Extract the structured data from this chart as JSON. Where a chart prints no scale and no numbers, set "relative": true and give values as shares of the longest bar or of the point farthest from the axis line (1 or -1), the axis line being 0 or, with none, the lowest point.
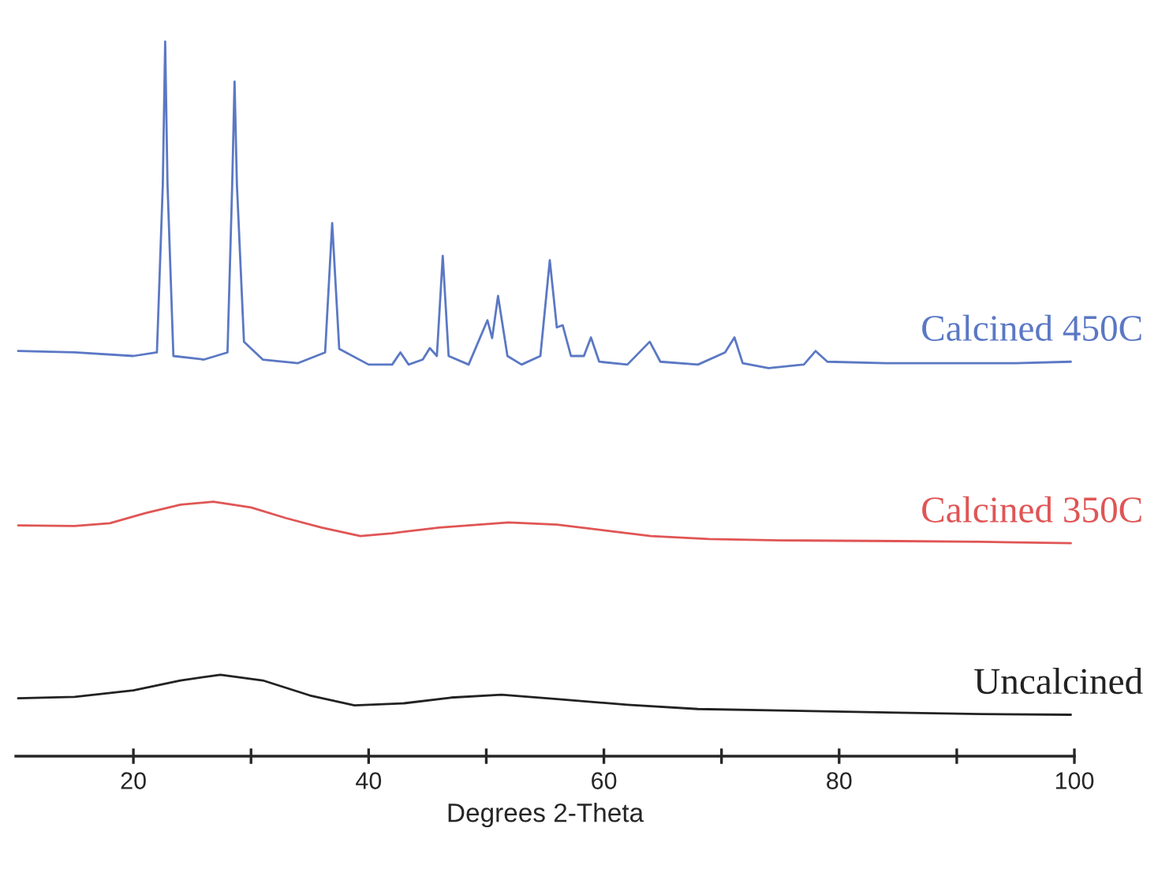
{
  "chart_data": {
    "type": "line",
    "relative": true,
    "xlabel": "Degrees 2-Theta",
    "xlim": [
      10,
      100
    ],
    "xticks": [
      20,
      {
        "value": 30,
        "label": null
      },
      40,
      {
        "value": 50,
        "label": null
      },
      60,
      {
        "value": 70,
        "label": null
      },
      80,
      {
        "value": 90,
        "label": null
      },
      100
    ],
    "legend": false,
    "grid": false,
    "marker": "none",
    "line_style": "solid",
    "series": [
      {
        "name": "Calcined 450C",
        "color": "#5b78c4",
        "x": [
          10.2,
          15,
          20,
          22.0,
          22.5,
          22.7,
          22.9,
          23.4,
          26,
          28.0,
          28.4,
          28.6,
          28.8,
          29.4,
          31,
          34,
          36.3,
          36.9,
          37.5,
          40,
          42.0,
          42.7,
          43.4,
          44.6,
          45.2,
          45.8,
          46.3,
          46.8,
          48.5,
          50.1,
          50.5,
          51.0,
          51.8,
          53,
          54.6,
          55.4,
          56.0,
          56.5,
          57.2,
          58.3,
          58.9,
          59.6,
          62,
          63.9,
          64.8,
          68,
          70.3,
          71.1,
          71.8,
          74,
          77,
          78.0,
          79,
          84,
          90,
          95,
          99.7
        ],
        "values": [
          0.567,
          0.565,
          0.56,
          0.565,
          0.8,
          1.0,
          0.8,
          0.56,
          0.555,
          0.565,
          0.8,
          0.944,
          0.8,
          0.58,
          0.555,
          0.55,
          0.565,
          0.746,
          0.57,
          0.548,
          0.548,
          0.565,
          0.548,
          0.555,
          0.571,
          0.56,
          0.7,
          0.56,
          0.548,
          0.61,
          0.585,
          0.644,
          0.56,
          0.548,
          0.56,
          0.694,
          0.6,
          0.603,
          0.56,
          0.56,
          0.586,
          0.552,
          0.548,
          0.58,
          0.552,
          0.548,
          0.565,
          0.586,
          0.55,
          0.543,
          0.548,
          0.567,
          0.552,
          0.55,
          0.55,
          0.55,
          0.552
        ]
      },
      {
        "name": "Calcined 350C",
        "color": "#e05555",
        "x": [
          10.2,
          15,
          18,
          21,
          24,
          26.8,
          30,
          33,
          36,
          39.3,
          42,
          46,
          51.9,
          56,
          60,
          64,
          68.9,
          75,
          85,
          92,
          99.7
        ],
        "values": [
          0.323,
          0.322,
          0.326,
          0.34,
          0.352,
          0.356,
          0.348,
          0.333,
          0.32,
          0.308,
          0.312,
          0.32,
          0.327,
          0.324,
          0.316,
          0.308,
          0.304,
          0.302,
          0.301,
          0.3,
          0.298
        ]
      },
      {
        "name": "Uncalcined",
        "color": "#222222",
        "x": [
          10.2,
          15,
          20,
          24,
          27.4,
          31,
          35,
          38.8,
          43,
          47,
          51.3,
          56,
          62,
          68,
          75,
          85,
          92,
          99.7
        ],
        "values": [
          0.081,
          0.083,
          0.092,
          0.106,
          0.114,
          0.106,
          0.085,
          0.071,
          0.074,
          0.082,
          0.086,
          0.08,
          0.072,
          0.066,
          0.064,
          0.061,
          0.059,
          0.058
        ]
      }
    ]
  }
}
